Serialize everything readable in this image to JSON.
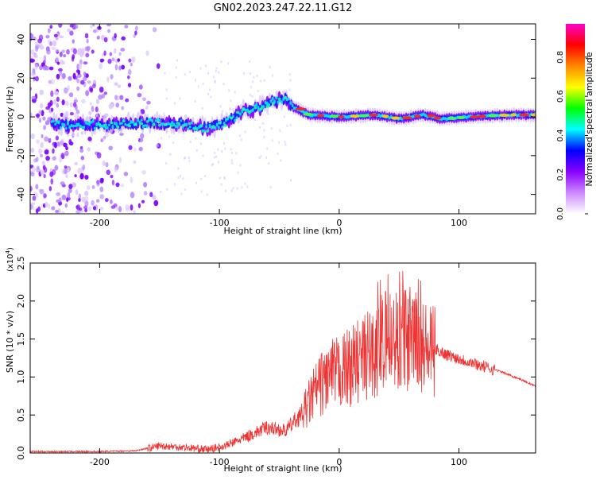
{
  "title": "GN02.2023.247.22.11.G12",
  "chart_data": [
    {
      "type": "heatmap",
      "name": "spectrogram",
      "xlabel": "Height of straight line (km)",
      "ylabel": "Frequency (Hz)",
      "xlim": [
        -258,
        164
      ],
      "ylim": [
        -50,
        48
      ],
      "xticks": [
        -200,
        -100,
        0,
        100
      ],
      "yticks": [
        -40,
        -20,
        0,
        20,
        40
      ],
      "ridge": [
        {
          "x": -230,
          "y": -4
        },
        {
          "x": -190,
          "y": -4
        },
        {
          "x": -160,
          "y": -3
        },
        {
          "x": -130,
          "y": -4
        },
        {
          "x": -110,
          "y": -6
        },
        {
          "x": -95,
          "y": -3
        },
        {
          "x": -80,
          "y": 3
        },
        {
          "x": -65,
          "y": 5
        },
        {
          "x": -55,
          "y": 8
        },
        {
          "x": -45,
          "y": 10
        },
        {
          "x": -38,
          "y": 5
        },
        {
          "x": -25,
          "y": 1
        },
        {
          "x": 0,
          "y": 0
        },
        {
          "x": 30,
          "y": 1
        },
        {
          "x": 50,
          "y": -1
        },
        {
          "x": 70,
          "y": 1
        },
        {
          "x": 85,
          "y": -1
        },
        {
          "x": 110,
          "y": 0
        },
        {
          "x": 140,
          "y": 1
        },
        {
          "x": 164,
          "y": 1
        }
      ],
      "colorbar": {
        "label": "Normalized spectral amplitude",
        "range": [
          0,
          0.97
        ],
        "ticks": [
          "0.0",
          "0.2",
          "0.4",
          "0.6",
          "0.8"
        ],
        "tick_values": [
          0.0,
          0.2,
          0.4,
          0.6,
          0.8
        ],
        "colors": [
          "#ffffff",
          "#cc88ff",
          "#8800ff",
          "#0000ff",
          "#00ffff",
          "#00ff00",
          "#ffff00",
          "#ff8800",
          "#ff0000",
          "#ff00cc"
        ]
      }
    },
    {
      "type": "line",
      "name": "snr",
      "xlabel": "Height of straight line (km)",
      "ylabel": "SNR (10 * v/v)",
      "scale_label": "(x10",
      "scale_exp": "4",
      "xlim": [
        -258,
        164
      ],
      "ylim": [
        0,
        2.5
      ],
      "xticks": [
        -200,
        -100,
        0,
        100
      ],
      "yticks": [
        "0.0",
        "0.5",
        "1.0",
        "1.5",
        "2.0",
        "2.5"
      ],
      "ytick_values": [
        0.0,
        0.5,
        1.0,
        1.5,
        2.0,
        2.5
      ],
      "series": [
        {
          "name": "SNR",
          "color": "#ee3333",
          "envelope": [
            {
              "x": -258,
              "y": 0.02
            },
            {
              "x": -200,
              "y": 0.02
            },
            {
              "x": -170,
              "y": 0.03
            },
            {
              "x": -150,
              "y": 0.1
            },
            {
              "x": -130,
              "y": 0.08
            },
            {
              "x": -110,
              "y": 0.05
            },
            {
              "x": -95,
              "y": 0.1
            },
            {
              "x": -80,
              "y": 0.2
            },
            {
              "x": -60,
              "y": 0.35
            },
            {
              "x": -45,
              "y": 0.3
            },
            {
              "x": -30,
              "y": 0.55
            },
            {
              "x": -20,
              "y": 0.85
            },
            {
              "x": -10,
              "y": 1.05
            },
            {
              "x": 0,
              "y": 1.1
            },
            {
              "x": 20,
              "y": 1.3
            },
            {
              "x": 40,
              "y": 1.55
            },
            {
              "x": 55,
              "y": 1.6
            },
            {
              "x": 70,
              "y": 1.45
            },
            {
              "x": 90,
              "y": 1.3
            },
            {
              "x": 110,
              "y": 1.2
            },
            {
              "x": 130,
              "y": 1.1
            },
            {
              "x": 150,
              "y": 0.98
            },
            {
              "x": 164,
              "y": 0.88
            }
          ]
        }
      ]
    }
  ]
}
